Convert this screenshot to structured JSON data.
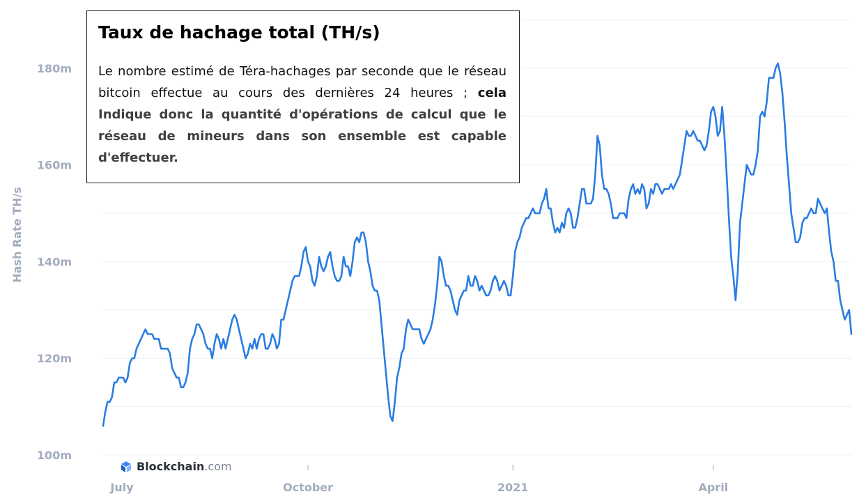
{
  "info": {
    "title": "Taux de hachage total (TH/s)",
    "text_plain": "Le nombre estimé de Téra-hachages par seconde que le réseau bitcoin effectue au cours des dernières 24 heures ;",
    "text_bold_1": "cela",
    "text_bold_2": "Indique donc la quantité d'opérations de calcul que le réseau de mineurs dans son ensemble est capable d'effectuer."
  },
  "brand": {
    "name": "Blockchain",
    "suffix": ".com",
    "icon": "blockchain-cube-icon"
  },
  "colors": {
    "line": "#2a7de1",
    "axis_text": "#a3acbf",
    "grid": "#eef0f5"
  },
  "chart_data": {
    "type": "line",
    "ylabel": "Hash Rate TH/s",
    "ylim": [
      100,
      190
    ],
    "yticks": [
      100,
      120,
      140,
      160,
      180
    ],
    "ytick_labels": [
      "100m",
      "120m",
      "140m",
      "160m",
      "180m"
    ],
    "xticks": [
      {
        "label": "July",
        "index": 0
      },
      {
        "label": "October",
        "index": 92
      },
      {
        "label": "2021",
        "index": 184
      },
      {
        "label": "April",
        "index": 274
      }
    ],
    "grid": true,
    "series": [
      {
        "name": "",
        "x_start": "2020-06-29",
        "x_step_days": 1,
        "values": [
          106,
          109,
          111,
          111,
          112,
          115,
          115,
          116,
          116,
          116,
          115,
          116,
          119,
          120,
          120,
          122,
          123,
          124,
          125,
          126,
          125,
          125,
          125,
          124,
          124,
          124,
          122,
          122,
          122,
          122,
          121,
          118,
          117,
          116,
          116,
          114,
          114,
          115,
          117,
          122,
          124,
          125,
          127,
          127,
          126,
          125,
          123,
          122,
          122,
          120,
          123,
          125,
          124,
          122,
          124,
          122,
          124,
          126,
          128,
          129,
          128,
          126,
          124,
          122,
          120,
          121,
          123,
          122,
          124,
          122,
          124,
          125,
          125,
          122,
          122,
          123,
          125,
          124,
          122,
          123,
          128,
          128,
          130,
          132,
          134,
          136,
          137,
          137,
          137,
          139,
          142,
          143,
          140,
          139,
          136,
          135,
          137,
          141,
          139,
          138,
          139,
          141,
          142,
          139,
          137,
          136,
          136,
          137,
          141,
          139,
          139,
          137,
          140,
          144,
          145,
          144,
          146,
          146,
          144,
          140,
          138,
          135,
          134,
          134,
          132,
          127,
          122,
          117,
          112,
          108,
          107,
          111,
          116,
          118,
          121,
          122,
          126,
          128,
          127,
          126,
          126,
          126,
          126,
          124,
          123,
          124,
          125,
          126,
          128,
          131,
          135,
          141,
          140,
          137,
          135,
          135,
          134,
          132,
          130,
          129,
          132,
          133,
          134,
          134,
          137,
          135,
          135,
          137,
          136,
          134,
          135,
          134,
          133,
          133,
          134,
          136,
          137,
          136,
          134,
          135,
          136,
          135,
          133,
          133,
          137,
          142,
          144,
          145,
          147,
          148,
          149,
          149,
          150,
          151,
          150,
          150,
          150,
          152,
          153,
          155,
          151,
          151,
          148,
          146,
          147,
          146,
          148,
          147,
          150,
          151,
          150,
          147,
          147,
          149,
          152,
          155,
          155,
          152,
          152,
          152,
          153,
          158,
          166,
          164,
          158,
          155,
          155,
          154,
          152,
          149,
          149,
          149,
          150,
          150,
          150,
          149,
          153,
          155,
          156,
          154,
          155,
          154,
          156,
          155,
          151,
          152,
          155,
          154,
          156,
          156,
          155,
          154,
          155,
          155,
          155,
          156,
          155,
          156,
          157,
          158,
          161,
          164,
          167,
          166,
          166,
          167,
          166,
          165,
          165,
          164,
          163,
          164,
          167,
          171,
          172,
          170,
          166,
          167,
          172,
          166,
          158,
          149,
          141,
          137,
          132,
          138,
          148,
          152,
          156,
          160,
          159,
          158,
          158,
          160,
          163,
          170,
          171,
          170,
          173,
          178,
          178,
          178,
          180,
          181,
          179,
          175,
          169,
          162,
          156,
          150,
          147,
          144,
          144,
          145,
          148,
          149,
          149,
          150,
          151,
          150,
          150,
          153,
          152,
          151,
          150,
          151,
          146,
          142,
          140,
          136,
          136,
          132,
          130,
          128,
          129,
          130,
          125
        ]
      }
    ]
  }
}
